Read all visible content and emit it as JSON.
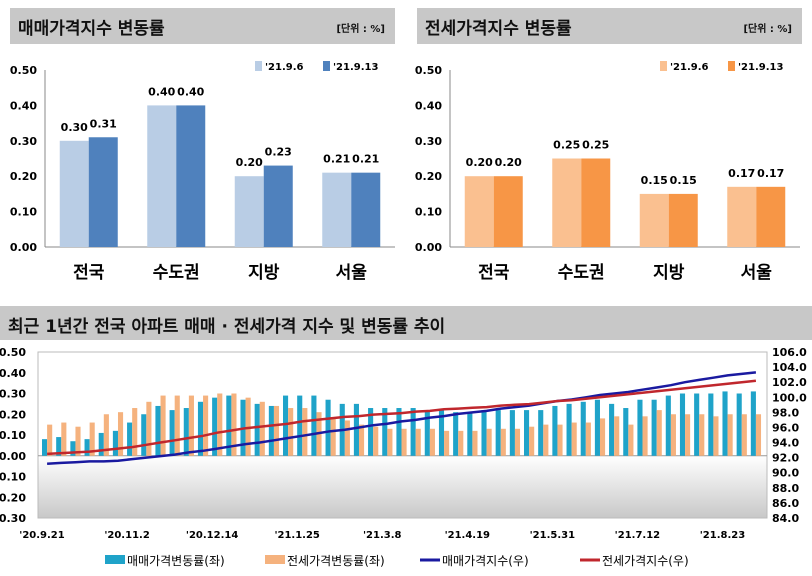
{
  "panels": {
    "sale_title": "매매가격지수 변동률",
    "lease_title": "전세가격지수 변동률",
    "unit": "[단위 : %]",
    "trend_title": "최근 1년간 전국 아파트 매매 · 전세가격 지수 및 변동률 추이"
  },
  "chart_data": [
    {
      "type": "bar",
      "title": "매매가격지수 변동률",
      "categories": [
        "전국",
        "수도권",
        "지방",
        "서울"
      ],
      "series": [
        {
          "name": "'21.9.6",
          "values": [
            0.3,
            0.4,
            0.2,
            0.21
          ],
          "color": "#b9cde5"
        },
        {
          "name": "'21.9.13",
          "values": [
            0.31,
            0.4,
            0.23,
            0.21
          ],
          "color": "#4f81bd"
        }
      ],
      "ylim": [
        0,
        0.5
      ],
      "yticks": [
        "0.00",
        "0.10",
        "0.20",
        "0.30",
        "0.40",
        "0.50"
      ],
      "legend": "top-right"
    },
    {
      "type": "bar",
      "title": "전세가격지수 변동률",
      "categories": [
        "전국",
        "수도권",
        "지방",
        "서울"
      ],
      "series": [
        {
          "name": "'21.9.6",
          "values": [
            0.2,
            0.25,
            0.15,
            0.17
          ],
          "color": "#fac090"
        },
        {
          "name": "'21.9.13",
          "values": [
            0.2,
            0.25,
            0.15,
            0.17
          ],
          "color": "#f79646"
        }
      ],
      "ylim": [
        0,
        0.5
      ],
      "yticks": [
        "0.00",
        "0.10",
        "0.20",
        "0.30",
        "0.40",
        "0.50"
      ],
      "legend": "top-right"
    },
    {
      "type": "bar+line",
      "title": "최근 1년간 전국 아파트 매매 · 전세가격 지수 및 변동률 추이",
      "xticks": [
        "'20.9.21",
        "'20.11.2",
        "'20.12.14",
        "'21.1.25",
        "'21.3.8",
        "'21.4.19",
        "'21.5.31",
        "'21.7.12",
        "'21.8.23"
      ],
      "ylim_left": [
        -0.3,
        0.5
      ],
      "yticks_left": [
        "0.50",
        "0.40",
        "0.30",
        "0.20",
        "0.10",
        "0.00",
        "-0.10",
        "-0.20",
        "-0.30"
      ],
      "ylim_right": [
        84,
        106
      ],
      "yticks_right": [
        "106.0",
        "104.0",
        "102.0",
        "100.0",
        "98.0",
        "96.0",
        "94.0",
        "92.0",
        "90.0",
        "88.0",
        "86.0",
        "84.0"
      ],
      "legend": "bottom",
      "series": [
        {
          "name": "매매가격변동률(좌)",
          "axis": "left",
          "type": "bar",
          "color": "#1fa3c9",
          "values": [
            0.08,
            0.09,
            0.07,
            0.08,
            0.11,
            0.12,
            0.16,
            0.2,
            0.24,
            0.22,
            0.23,
            0.26,
            0.28,
            0.29,
            0.27,
            0.25,
            0.24,
            0.29,
            0.29,
            0.29,
            0.27,
            0.25,
            0.25,
            0.23,
            0.23,
            0.23,
            0.23,
            0.22,
            0.22,
            0.21,
            0.21,
            0.22,
            0.22,
            0.22,
            0.22,
            0.22,
            0.24,
            0.25,
            0.26,
            0.27,
            0.25,
            0.23,
            0.27,
            0.27,
            0.29,
            0.3,
            0.3,
            0.3,
            0.31,
            0.3,
            0.31
          ]
        },
        {
          "name": "전세가격변동률(좌)",
          "axis": "left",
          "type": "bar",
          "color": "#f5b27e",
          "values": [
            0.15,
            0.16,
            0.14,
            0.16,
            0.2,
            0.21,
            0.23,
            0.26,
            0.29,
            0.29,
            0.29,
            0.29,
            0.3,
            0.3,
            0.28,
            0.26,
            0.24,
            0.23,
            0.23,
            0.21,
            0.18,
            0.17,
            0.15,
            0.14,
            0.13,
            0.13,
            0.13,
            0.13,
            0.12,
            0.12,
            0.12,
            0.13,
            0.13,
            0.13,
            0.14,
            0.15,
            0.15,
            0.16,
            0.16,
            0.18,
            0.19,
            0.15,
            0.19,
            0.22,
            0.2,
            0.2,
            0.2,
            0.19,
            0.2,
            0.2,
            0.2
          ]
        },
        {
          "name": "매매가격지수(우)",
          "axis": "right",
          "type": "line",
          "color": "#1a1aa0",
          "values": [
            91.2,
            91.3,
            91.4,
            91.5,
            91.5,
            91.6,
            91.8,
            92.0,
            92.2,
            92.4,
            92.7,
            92.9,
            93.2,
            93.5,
            93.8,
            94.0,
            94.3,
            94.6,
            94.9,
            95.2,
            95.5,
            95.7,
            96.0,
            96.3,
            96.5,
            96.8,
            97.0,
            97.3,
            97.5,
            97.8,
            98.0,
            98.2,
            98.5,
            98.7,
            98.9,
            99.2,
            99.5,
            99.7,
            100.0,
            100.3,
            100.5,
            100.7,
            101.0,
            101.3,
            101.6,
            102.0,
            102.3,
            102.6,
            102.9,
            103.1,
            103.3
          ]
        },
        {
          "name": "전세가격지수(우)",
          "axis": "right",
          "type": "line",
          "color": "#c0272d",
          "values": [
            92.5,
            92.6,
            92.7,
            92.8,
            93.0,
            93.2,
            93.4,
            93.7,
            94.0,
            94.3,
            94.6,
            94.9,
            95.3,
            95.6,
            95.9,
            96.1,
            96.3,
            96.5,
            96.8,
            97.0,
            97.2,
            97.4,
            97.5,
            97.7,
            97.8,
            97.9,
            98.1,
            98.2,
            98.4,
            98.5,
            98.6,
            98.7,
            98.9,
            99.0,
            99.1,
            99.3,
            99.5,
            99.6,
            99.8,
            100.0,
            100.2,
            100.4,
            100.6,
            100.8,
            101.0,
            101.2,
            101.4,
            101.6,
            101.8,
            102.0,
            102.2
          ]
        }
      ]
    }
  ]
}
